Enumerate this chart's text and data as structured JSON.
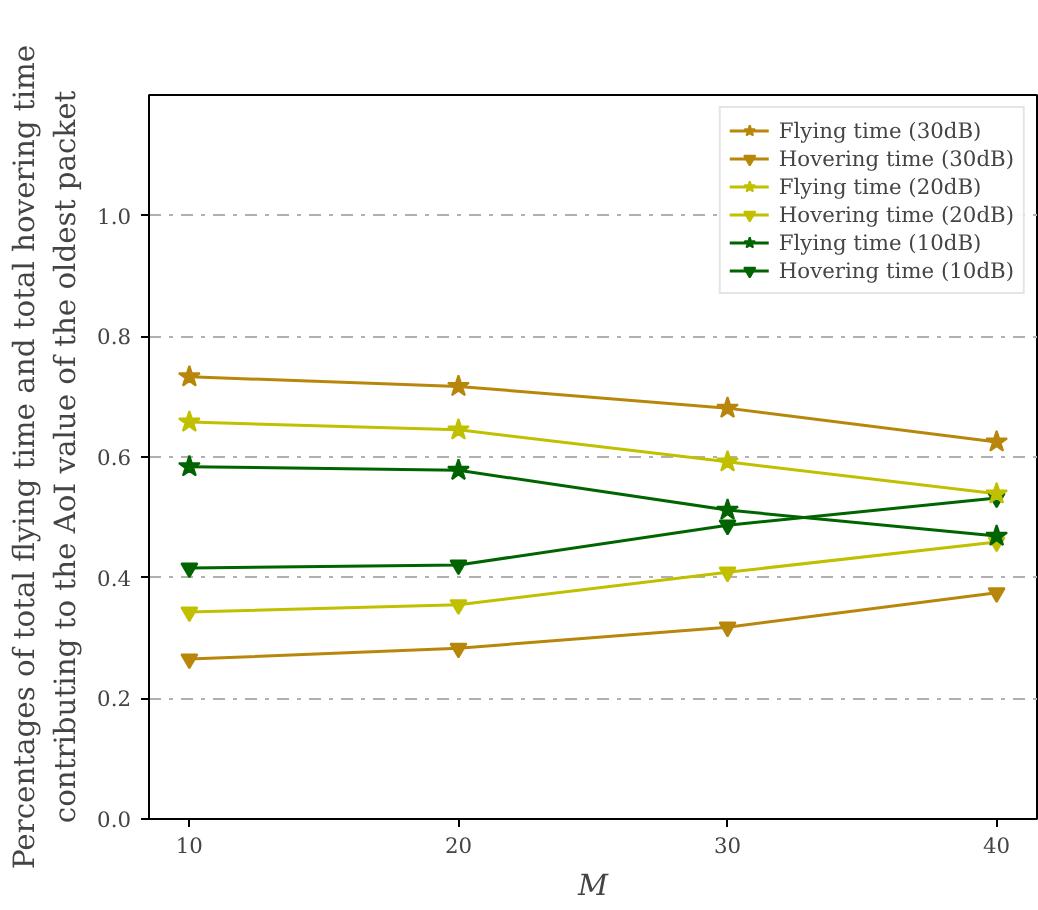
{
  "chart_data": {
    "type": "line",
    "xlabel": "M",
    "ylabel": "Percentages of total flying time and total hovering time\ncontributing to the AoI value of the oldest packet",
    "x": [
      10,
      20,
      30,
      40
    ],
    "series": [
      {
        "name": "Flying time (30dB)",
        "color": "#b8860b",
        "marker": "star",
        "values": [
          0.733,
          0.717,
          0.681,
          0.625
        ]
      },
      {
        "name": "Hovering time (30dB)",
        "color": "#b8860b",
        "marker": "triangle",
        "values": [
          0.265,
          0.283,
          0.318,
          0.375
        ]
      },
      {
        "name": "Flying time (20dB)",
        "color": "#c0c000",
        "marker": "star",
        "values": [
          0.658,
          0.645,
          0.592,
          0.539
        ]
      },
      {
        "name": "Hovering time (20dB)",
        "color": "#c0c000",
        "marker": "triangle",
        "values": [
          0.343,
          0.355,
          0.409,
          0.459
        ]
      },
      {
        "name": "Flying time (10dB)",
        "color": "#006400",
        "marker": "star",
        "values": [
          0.584,
          0.578,
          0.512,
          0.469
        ]
      },
      {
        "name": "Hovering time (10dB)",
        "color": "#006400",
        "marker": "triangle",
        "values": [
          0.416,
          0.421,
          0.487,
          0.532
        ]
      }
    ],
    "xlim": [
      8.5,
      41.5
    ],
    "xticks": [
      10,
      20,
      30,
      40
    ],
    "ylim": [
      0,
      1.2
    ],
    "yticks": [
      {
        "value": 0,
        "label": "0.0"
      },
      {
        "value": 0.2,
        "label": "0.2"
      },
      {
        "value": 0.4,
        "label": "0.4"
      },
      {
        "value": 0.6,
        "label": "0.6"
      },
      {
        "value": 0.8,
        "label": "0.8"
      },
      {
        "value": 1.0,
        "label": "1.0"
      }
    ],
    "grid": "y",
    "legend": "top right",
    "line_style": "solid"
  }
}
